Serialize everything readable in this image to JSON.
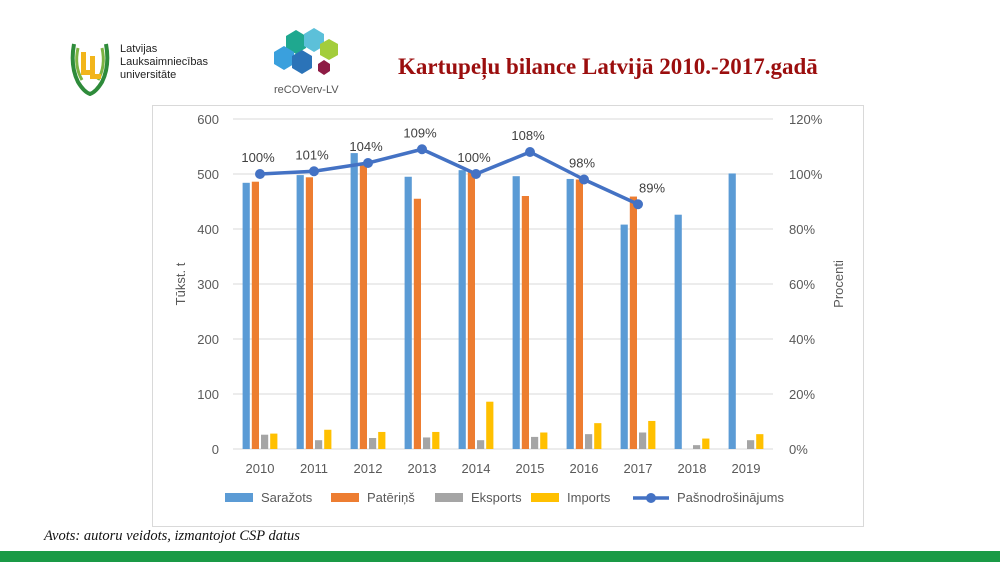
{
  "header": {
    "org_name_lines": [
      "Latvijas",
      "Lauksaimniecības",
      "universitāte"
    ],
    "project_brand": "reCOVerv-LV",
    "title": "Kartupeļu bilance Latvijā 2010.-2017.gadā"
  },
  "footer": {
    "source": "Avots: autoru veidots, izmantojot CSP datus"
  },
  "colors": {
    "title": "#9b0e0e",
    "bottom_bar": "#1a9a46"
  },
  "icons": {
    "university_logo": "wheat-ll-emblem-icon",
    "project_logo": "hexagon-cluster-icon"
  },
  "chart_data": {
    "type": "bar",
    "categories": [
      "2010",
      "2011",
      "2012",
      "2013",
      "2014",
      "2015",
      "2016",
      "2017",
      "2018",
      "2019"
    ],
    "series": [
      {
        "name": "Saražots",
        "color": "#5b9bd5",
        "values": [
          484,
          498,
          538,
          495,
          507,
          496,
          491,
          408,
          426,
          501
        ]
      },
      {
        "name": "Patēriņš",
        "color": "#ed7d31",
        "values": [
          486,
          494,
          520,
          455,
          503,
          460,
          490,
          459,
          null,
          null
        ]
      },
      {
        "name": "Eksports",
        "color": "#a5a5a5",
        "values": [
          26,
          16,
          20,
          21,
          16,
          22,
          27,
          30,
          7,
          16
        ]
      },
      {
        "name": "Imports",
        "color": "#ffc000",
        "values": [
          28,
          35,
          31,
          31,
          86,
          30,
          47,
          51,
          19,
          27
        ]
      }
    ],
    "line_series": {
      "name": "Pašnodrošinājums",
      "color": "#4472c4",
      "axis": "right",
      "values": [
        100,
        101,
        104,
        109,
        100,
        108,
        98,
        89,
        null,
        null
      ],
      "labels": [
        "100%",
        "101%",
        "104%",
        "109%",
        "100%",
        "108%",
        "98%",
        "89%",
        "",
        ""
      ]
    },
    "y_left": {
      "label": "Tūkst. t",
      "min": 0,
      "max": 600,
      "ticks": [
        "0",
        "100",
        "200",
        "300",
        "400",
        "500",
        "600"
      ]
    },
    "y_right": {
      "label": "Procenti",
      "min": 0,
      "max": 120,
      "ticks": [
        "0%",
        "20%",
        "40%",
        "60%",
        "80%",
        "100%",
        "120%"
      ]
    },
    "grid": true,
    "legend_position": "bottom"
  }
}
